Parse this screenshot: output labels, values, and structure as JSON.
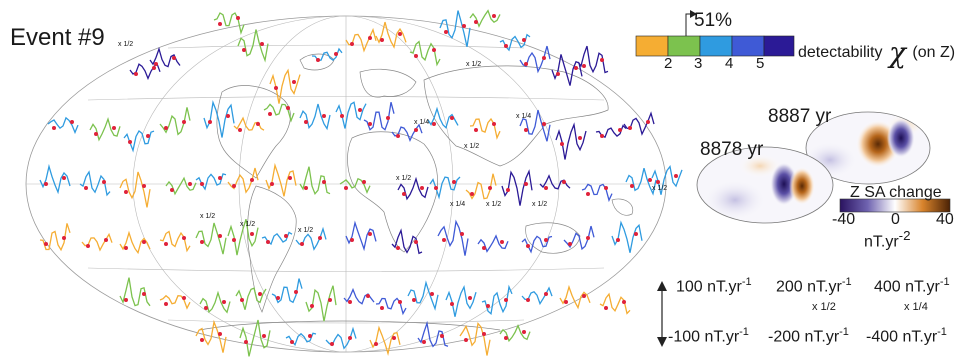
{
  "event_title": "Event #9",
  "detectability": {
    "label_prefix": "detectability",
    "symbol": "χ",
    "label_suffix": "(on Z)",
    "percent_label": "51%",
    "ticks": [
      "2",
      "3",
      "4",
      "5"
    ],
    "colors": [
      "#f5ad33",
      "#7cc24e",
      "#2f9be0",
      "#3f5ad6",
      "#2b1a96"
    ]
  },
  "maps": {
    "later_age": "8887 yr",
    "earlier_age": "8878 yr",
    "colorbar_title": "Z SA change",
    "colorbar_ticks": [
      "-40",
      "0",
      "40"
    ],
    "colorbar_unit": "nT.yr-2",
    "colorbar_colors": [
      "#2a1360",
      "#6f63b0",
      "#ffffff",
      "#d9842c",
      "#4b2205"
    ]
  },
  "scale_legend": {
    "top_labels": [
      "100 nT.yr-1",
      "200 nT.yr-1",
      "400 nT.yr-1"
    ],
    "bottom_labels": [
      "-100 nT.yr-1",
      "-200 nT.yr-1",
      "-400 nT.yr-1"
    ],
    "factors": [
      "x 1/2",
      "x 1/4"
    ]
  },
  "map_factor_labels": [
    "x 1/2",
    "x 1/2",
    "x 1/4",
    "x 1/2",
    "x 1/4",
    "x 1/2",
    "x 1/2",
    "x 1/2",
    "x 1/2",
    "x 1/4",
    "x 1/2",
    "x 1/2",
    "x 1/2"
  ]
}
